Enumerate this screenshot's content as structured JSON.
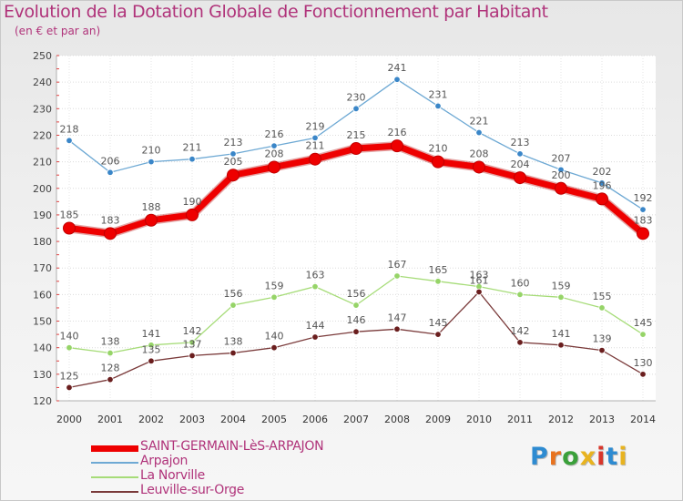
{
  "title": "Evolution de la Dotation Globale de Fonctionnement par Habitant",
  "subtitle": "(en € et par an)",
  "logo": {
    "text": "Proxiti",
    "letter_colors": [
      "#2e8bd1",
      "#e8731f",
      "#3aa03a",
      "#e8b31f",
      "#d8362b",
      "#2e8bd1",
      "#e8b31f"
    ]
  },
  "chart_data": {
    "type": "line",
    "title": "Evolution de la Dotation Globale de Fonctionnement par Habitant",
    "subtitle": "(en € et par an)",
    "xlabel": "",
    "ylabel": "",
    "x": [
      "2000",
      "2001",
      "2002",
      "2003",
      "2004",
      "2005",
      "2006",
      "2007",
      "2008",
      "2009",
      "2010",
      "2011",
      "2012",
      "2013",
      "2014"
    ],
    "ylim": [
      120,
      250
    ],
    "yticks": [
      120,
      130,
      140,
      150,
      160,
      170,
      180,
      190,
      200,
      210,
      220,
      230,
      240,
      250
    ],
    "grid": true,
    "legend_position": "bottom-left",
    "series": [
      {
        "name": "Arpajon",
        "color": "#6ea9d4",
        "marker_color": "#3a86c8",
        "values": [
          218,
          206,
          210,
          211,
          213,
          216,
          219,
          230,
          241,
          231,
          221,
          213,
          207,
          202,
          192
        ]
      },
      {
        "name": "La Norville",
        "color": "#a6dc78",
        "marker_color": "#96d468",
        "values": [
          140,
          138,
          141,
          142,
          156,
          159,
          163,
          156,
          167,
          165,
          163,
          160,
          159,
          155,
          145
        ]
      },
      {
        "name": "Leuville-sur-Orge",
        "color": "#7a3a3a",
        "marker_color": "#6a1e1e",
        "values": [
          125,
          128,
          135,
          137,
          138,
          140,
          144,
          146,
          147,
          145,
          161,
          142,
          141,
          139,
          130
        ]
      },
      {
        "name": "SAINT-GERMAIN-LèS-ARPAJON",
        "color": "#ee0000",
        "marker_color": "#ee0000",
        "emphasis": true,
        "values": [
          185,
          183,
          188,
          190,
          205,
          208,
          211,
          215,
          216,
          210,
          208,
          204,
          200,
          196,
          183
        ]
      }
    ],
    "legend_order": [
      "SAINT-GERMAIN-LèS-ARPAJON",
      "Arpajon",
      "La Norville",
      "Leuville-sur-Orge"
    ]
  }
}
